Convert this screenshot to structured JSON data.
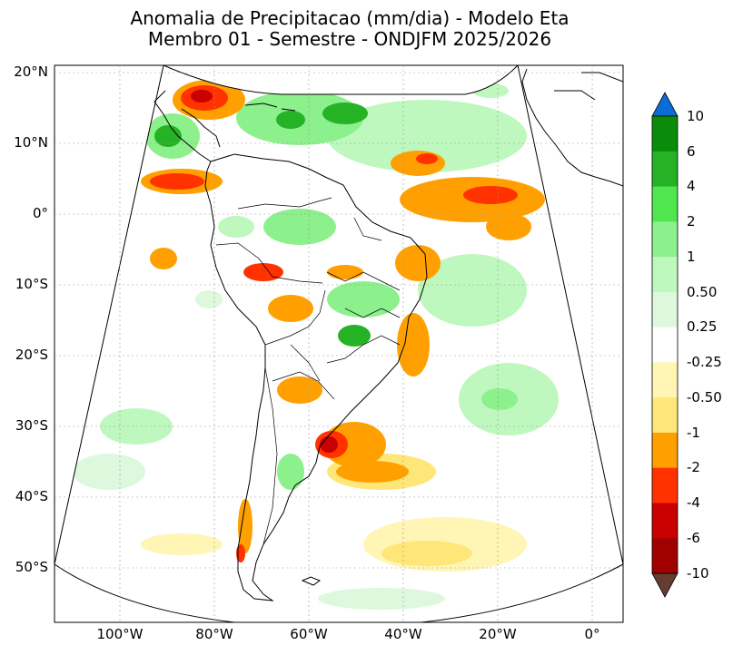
{
  "title": {
    "line1": "Anomalia de Precipitacao (mm/dia) - Modelo Eta",
    "line2": "Membro 01 - Semestre - ONDJFM 2025/2026"
  },
  "map": {
    "lat_labels": [
      "20°N",
      "10°N",
      "0°",
      "10°S",
      "20°S",
      "30°S",
      "40°S",
      "50°S"
    ],
    "lon_labels": [
      "100°W",
      "80°W",
      "60°W",
      "40°W",
      "20°W",
      "0°"
    ]
  },
  "colorbar": {
    "labels": [
      "10",
      "6",
      "4",
      "2",
      "1",
      "0.50",
      "0.25",
      "-0.25",
      "-0.50",
      "-1",
      "-2",
      "-4",
      "-6",
      "-10"
    ],
    "colors": [
      "#0a6ed6",
      "#0a8c0a",
      "#25b225",
      "#50e650",
      "#8cf08c",
      "#bef8be",
      "#def8de",
      "#ffffff",
      "#fff5b4",
      "#ffe678",
      "#ffa000",
      "#ff3200",
      "#c80000",
      "#a00000",
      "#643c32"
    ]
  }
}
